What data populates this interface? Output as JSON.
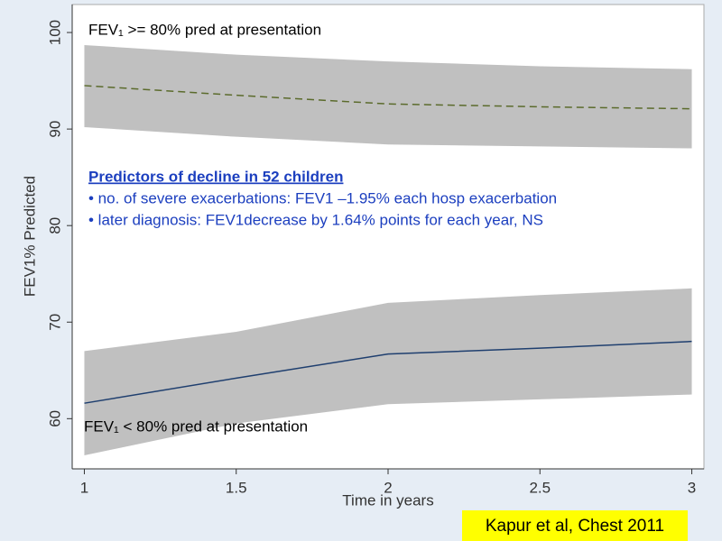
{
  "chart_data": {
    "type": "line",
    "x_label": "Time in years",
    "y_label": "FEV1% Predicted",
    "x": [
      1,
      1.5,
      2,
      2.5,
      3
    ],
    "xlim": [
      0.96,
      3.04
    ],
    "xticks": [
      1,
      1.5,
      2,
      2.5,
      3
    ],
    "ylim": [
      54.8,
      102.9
    ],
    "yticks": [
      60,
      70,
      80,
      90,
      100
    ],
    "band_color": "#c0c0c0",
    "series": [
      {
        "color": "#5b6b2c",
        "dashed": true,
        "values": [
          94.5,
          93.5,
          92.6,
          92.3,
          92.1
        ],
        "lower": [
          90.2,
          89.2,
          88.4,
          88.2,
          88.0
        ],
        "upper": [
          98.7,
          97.7,
          97.0,
          96.5,
          96.2
        ]
      },
      {
        "color": "#1f3f6f",
        "dashed": false,
        "values": [
          61.6,
          64.2,
          66.7,
          67.3,
          68.0
        ],
        "lower": [
          56.2,
          59.5,
          61.5,
          62.0,
          62.5
        ],
        "upper": [
          67.0,
          69.0,
          72.0,
          72.8,
          73.5
        ]
      }
    ],
    "annotations": {
      "top": "FEV₁ >= 80% pred at presentation",
      "bottom": "FEV₁ < 80% pred at presentation",
      "heading": "Predictors of decline in 52 children",
      "bullets": [
        "• no. of severe exacerbations: FEV1 –1.95% each hosp exacerbation",
        "• later diagnosis: FEV1decrease by 1.64% points for each year, NS"
      ],
      "citation": "Kapur et al, Chest 2011"
    }
  }
}
